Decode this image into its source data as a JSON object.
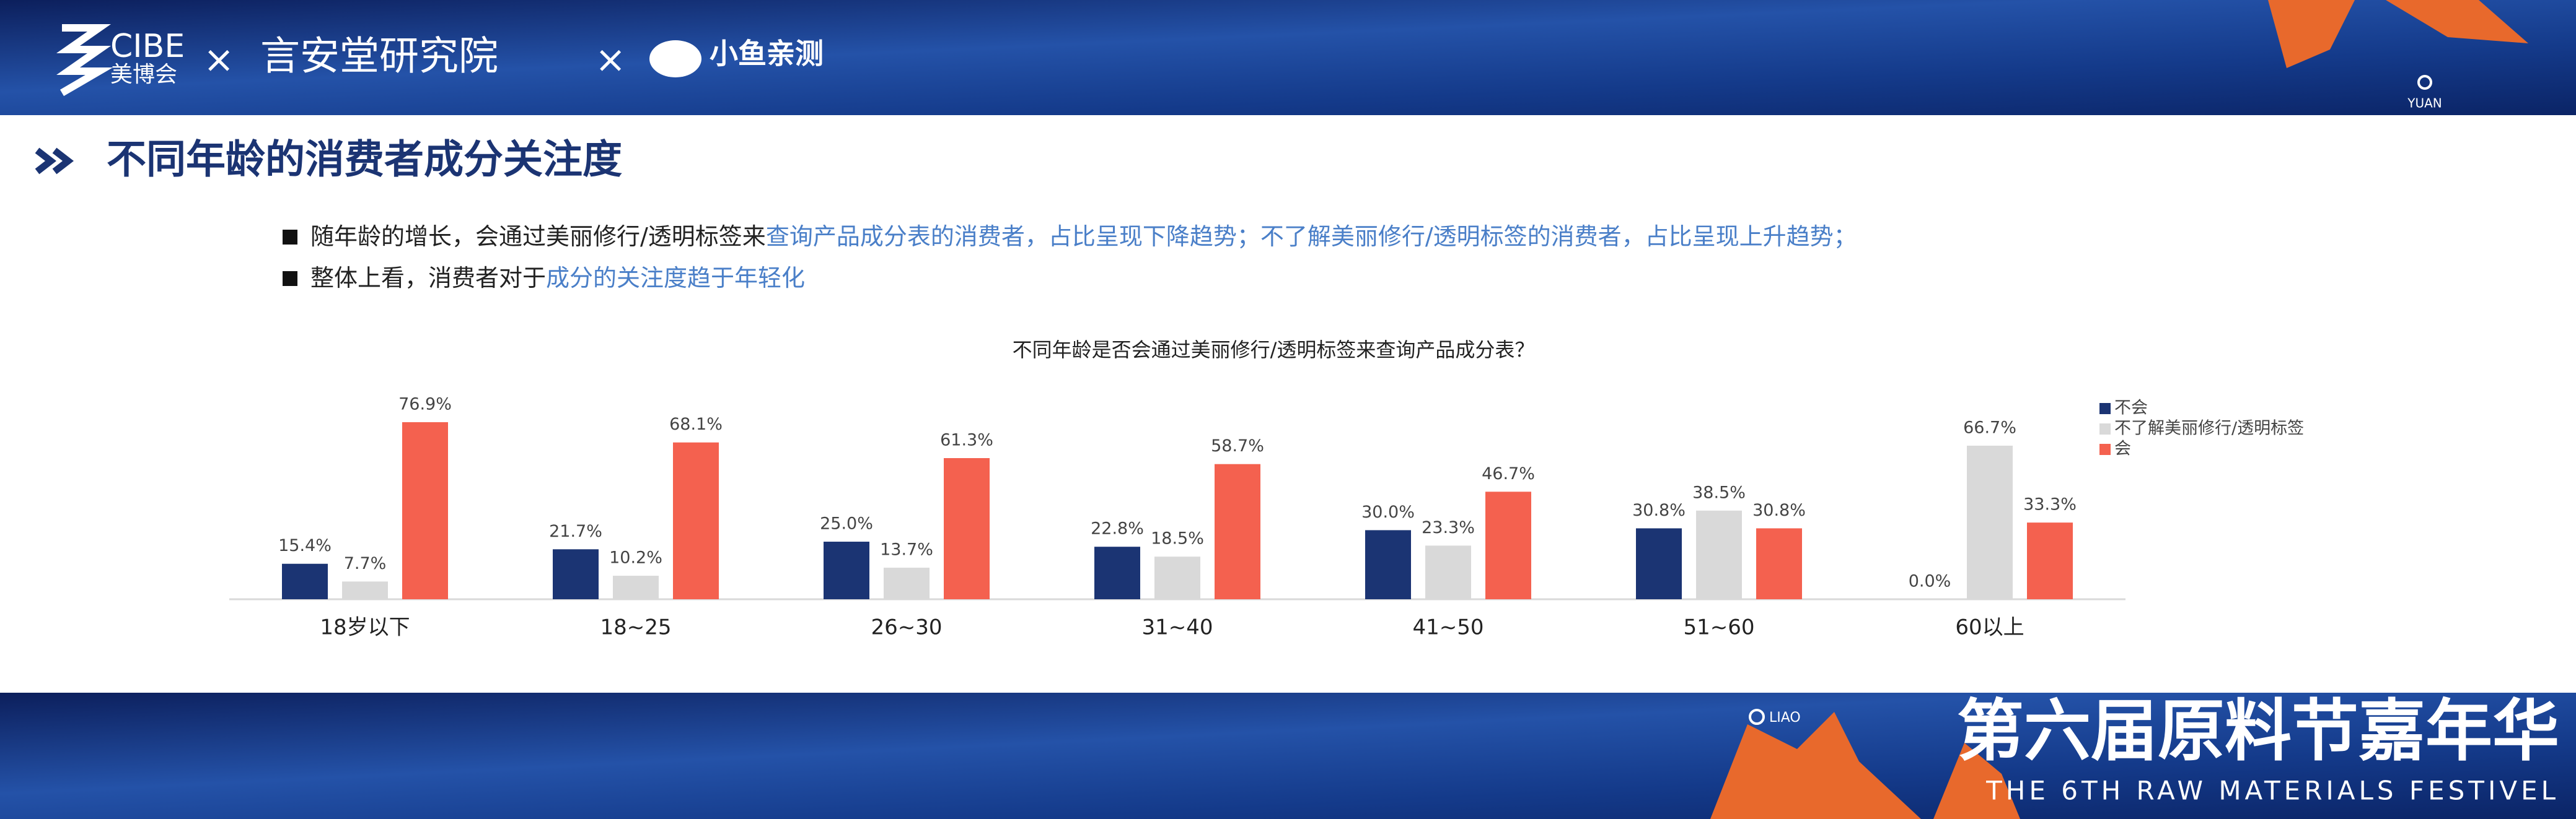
{
  "header": {
    "logo1": "CIBE",
    "logo1_sub": "美博会",
    "separators": [
      "×",
      "×"
    ],
    "logo2": "言安堂研究院",
    "logo3": "小鱼亲测",
    "badge": "YUAN"
  },
  "section_title": "不同年龄的消费者成分关注度",
  "bullets": [
    [
      "随年龄的增长，会通过美丽修行/透明标签来",
      "查询产品成分表的消费者，占比呈现下降趋势；不了解美丽修行/透明标签的消费者，占比呈现上升趋势；"
    ],
    [
      "整体上看，消费者对于",
      "成分的关注度趋于年轻化"
    ]
  ],
  "chart_data": {
    "type": "bar",
    "title": "不同年龄是否会通过美丽修行/透明标签来查询产品成分表？",
    "categories": [
      "18岁以下",
      "18~25",
      "26~30",
      "31~40",
      "41~50",
      "51~60",
      "60以上"
    ],
    "series": [
      {
        "name": "不会",
        "color": "#1b3473",
        "values": [
          15.4,
          21.7,
          25.0,
          22.8,
          30.0,
          30.8,
          0.0
        ],
        "value_labels": [
          "15.4%",
          "21.7%",
          "25.0%",
          "22.8%",
          "30.0%",
          "30.8%",
          "0.0%"
        ]
      },
      {
        "name": "不了解美丽修行/透明标签",
        "color": "#d9d9d9",
        "values": [
          7.7,
          10.2,
          13.7,
          18.5,
          23.3,
          38.5,
          66.7
        ],
        "value_labels": [
          "7.7%",
          "10.2%",
          "13.7%",
          "18.5%",
          "23.3%",
          "38.5%",
          "66.7%"
        ]
      },
      {
        "name": "会",
        "color": "#f4614f",
        "values": [
          76.9,
          68.1,
          61.3,
          58.7,
          46.7,
          30.8,
          33.3
        ],
        "value_labels": [
          "76.9%",
          "68.1%",
          "61.3%",
          "58.7%",
          "46.7%",
          "30.8%",
          "33.3%"
        ]
      }
    ],
    "legend": "right"
  },
  "footer": {
    "badge": "LIAO",
    "title": "第六届原料节嘉年华",
    "subtitle": "THE 6TH RAW MATERIALS FESTIVEL"
  }
}
